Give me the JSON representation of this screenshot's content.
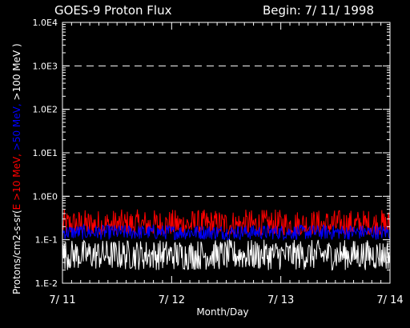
{
  "header": {
    "title": "GOES-9 Proton Flux",
    "begin_label": "Begin: 7/ 11/ 1998"
  },
  "chart_data": {
    "type": "line",
    "title": "GOES-9 Proton Flux",
    "xlabel": "Month/Day",
    "ylabel_parts": [
      {
        "text": "Protons/cm2-s-sr(",
        "color": "#ffffff"
      },
      {
        "text": "E >10 MeV,",
        "color": "#ff0000"
      },
      {
        "text": " >50 MeV,",
        "color": "#0000ff"
      },
      {
        "text": " >100 MeV )",
        "color": "#ffffff"
      }
    ],
    "x_ticks": [
      "7/ 11",
      "7/ 12",
      "7/ 13",
      "7/ 14"
    ],
    "xlim_days": [
      0,
      3
    ],
    "y_scale": "log",
    "ylim": [
      0.01,
      10000
    ],
    "y_ticks": [
      {
        "value": 0.01,
        "label": "1.E-2"
      },
      {
        "value": 0.1,
        "label": "1.E-1"
      },
      {
        "value": 1,
        "label": "1.0E0"
      },
      {
        "value": 10,
        "label": "1.0E1"
      },
      {
        "value": 100,
        "label": "1.0E2"
      },
      {
        "value": 1000,
        "label": "1.0E3"
      },
      {
        "value": 10000,
        "label": "1.0E4"
      }
    ],
    "dashed_grid_at": [
      1,
      10,
      100,
      1000
    ],
    "series": [
      {
        "color": "#ff0000",
        "approx_range": [
          0.13,
          0.5
        ]
      },
      {
        "color": "#0000ff",
        "approx_range": [
          0.1,
          0.22
        ]
      },
      {
        "color": "#ffffff",
        "approx_range": [
          0.02,
          0.1
        ]
      }
    ]
  }
}
